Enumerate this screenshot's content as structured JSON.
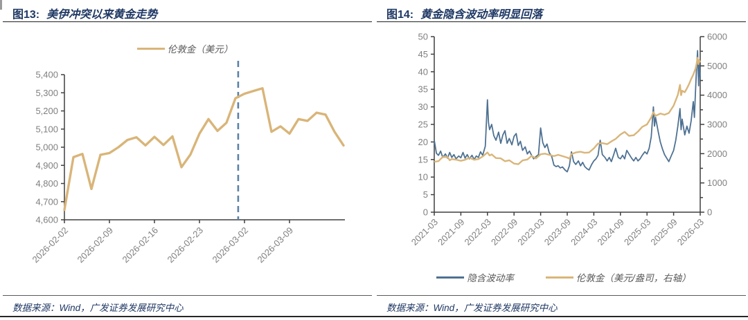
{
  "figures": [
    {
      "prefix": "图13:",
      "title": "美伊冲突以来黄金走势",
      "source": "数据来源：Wind，广发证券发展研究中心"
    },
    {
      "prefix": "图14:",
      "title": "黄金隐含波动率明显回落",
      "source": "数据来源：Wind，广发证券发展研究中心"
    }
  ],
  "colors": {
    "navy_text": "#1f3864",
    "gold_line": "#d9b579",
    "blue_line": "#4e7192",
    "axis_line": "#3f3f3f",
    "tick_label": "#7f7f7f",
    "dashed_event_line": "#5b82a6"
  },
  "chart_data": [
    {
      "type": "line",
      "title": "图13: 美伊冲突以来黄金走势",
      "legend_position": "top-center",
      "grid": false,
      "ylim": [
        4600,
        5400
      ],
      "y_tick_labels": [
        "4,600",
        "4,700",
        "4,800",
        "4,900",
        "5,000",
        "5,100",
        "5,200",
        "5,300",
        "5,400"
      ],
      "x_tick_labels": [
        "2026-02-02",
        "2026-02-09",
        "2026-02-16",
        "2026-02-23",
        "2026-03-02",
        "2026-03-09"
      ],
      "event_line": {
        "date": "2026-02-27",
        "style": "dashed"
      },
      "series": [
        {
          "name": "伦敦金（美元）",
          "color": "#d9b579",
          "dates": [
            "2026-02-02",
            "2026-02-03",
            "2026-02-04",
            "2026-02-05",
            "2026-02-06",
            "2026-02-09",
            "2026-02-10",
            "2026-02-11",
            "2026-02-12",
            "2026-02-13",
            "2026-02-16",
            "2026-02-17",
            "2026-02-18",
            "2026-02-19",
            "2026-02-20",
            "2026-02-23",
            "2026-02-24",
            "2026-02-25",
            "2026-02-26",
            "2026-02-27",
            "2026-03-02",
            "2026-03-03",
            "2026-03-04",
            "2026-03-05",
            "2026-03-06",
            "2026-03-09",
            "2026-03-10",
            "2026-03-11",
            "2026-03-12",
            "2026-03-13",
            "2026-03-16",
            "2026-03-17"
          ],
          "values": [
            4655,
            4945,
            4963,
            4770,
            4958,
            4968,
            5000,
            5040,
            5055,
            5010,
            5057,
            5012,
            5060,
            4890,
            4960,
            5075,
            5155,
            5090,
            5135,
            5270,
            5295,
            5310,
            5325,
            5085,
            5115,
            5075,
            5155,
            5145,
            5190,
            5180,
            5085,
            5010
          ]
        }
      ]
    },
    {
      "type": "line",
      "title": "图14: 黄金隐含波动率明显回落",
      "legend_position": "bottom-center",
      "grid": false,
      "left_ylim": [
        0,
        50
      ],
      "right_ylim": [
        0,
        6000
      ],
      "left_y_tick_labels": [
        "0",
        "5",
        "10",
        "15",
        "20",
        "25",
        "30",
        "35",
        "40",
        "45",
        "50"
      ],
      "right_y_tick_labels": [
        "0",
        "1000",
        "2000",
        "3000",
        "4000",
        "5000",
        "6000"
      ],
      "right_y_minor_tick_step": 500,
      "xlim_decimal_years": [
        2021.17,
        2026.17
      ],
      "x_tick_labels": [
        "2021-03",
        "2021-09",
        "2022-03",
        "2022-09",
        "2023-03",
        "2023-09",
        "2024-03",
        "2024-09",
        "2025-03",
        "2025-09",
        "2026-03"
      ],
      "series": [
        {
          "name": "隐含波动率",
          "axis": "left",
          "color": "#4e7192",
          "points": [
            [
              2021.17,
              20.5
            ],
            [
              2021.21,
              16.8
            ],
            [
              2021.25,
              16.2
            ],
            [
              2021.29,
              17.4
            ],
            [
              2021.33,
              15.6
            ],
            [
              2021.38,
              16.6
            ],
            [
              2021.42,
              15.4
            ],
            [
              2021.46,
              17
            ],
            [
              2021.5,
              15.6
            ],
            [
              2021.54,
              16.4
            ],
            [
              2021.58,
              15.2
            ],
            [
              2021.63,
              16
            ],
            [
              2021.67,
              15.5
            ],
            [
              2021.71,
              17
            ],
            [
              2021.75,
              15.4
            ],
            [
              2021.79,
              16.4
            ],
            [
              2021.83,
              15.2
            ],
            [
              2021.88,
              16.2
            ],
            [
              2021.92,
              15
            ],
            [
              2021.96,
              16
            ],
            [
              2022,
              15.6
            ],
            [
              2022.04,
              17.2
            ],
            [
              2022.08,
              16.2
            ],
            [
              2022.13,
              18.8
            ],
            [
              2022.17,
              32
            ],
            [
              2022.19,
              25.5
            ],
            [
              2022.21,
              23.5
            ],
            [
              2022.25,
              25
            ],
            [
              2022.29,
              21.8
            ],
            [
              2022.33,
              20.5
            ],
            [
              2022.38,
              22.8
            ],
            [
              2022.42,
              19.6
            ],
            [
              2022.46,
              22
            ],
            [
              2022.5,
              23.2
            ],
            [
              2022.54,
              19.6
            ],
            [
              2022.58,
              21
            ],
            [
              2022.63,
              19.2
            ],
            [
              2022.67,
              21.6
            ],
            [
              2022.71,
              22.4
            ],
            [
              2022.75,
              19
            ],
            [
              2022.79,
              20.2
            ],
            [
              2022.83,
              17.6
            ],
            [
              2022.88,
              18.6
            ],
            [
              2022.92,
              16.6
            ],
            [
              2022.96,
              17.4
            ],
            [
              2023,
              16.2
            ],
            [
              2023.04,
              15.2
            ],
            [
              2023.08,
              15.8
            ],
            [
              2023.13,
              16.4
            ],
            [
              2023.17,
              24
            ],
            [
              2023.21,
              19.8
            ],
            [
              2023.25,
              18.4
            ],
            [
              2023.29,
              19.4
            ],
            [
              2023.33,
              17
            ],
            [
              2023.38,
              15.8
            ],
            [
              2023.42,
              13.4
            ],
            [
              2023.46,
              13
            ],
            [
              2023.5,
              13.2
            ],
            [
              2023.54,
              12.6
            ],
            [
              2023.58,
              12.9
            ],
            [
              2023.63,
              12
            ],
            [
              2023.67,
              11.5
            ],
            [
              2023.71,
              13.2
            ],
            [
              2023.75,
              17.2
            ],
            [
              2023.79,
              14.4
            ],
            [
              2023.83,
              13.6
            ],
            [
              2023.88,
              14.6
            ],
            [
              2023.92,
              13.2
            ],
            [
              2023.96,
              14.2
            ],
            [
              2024,
              13
            ],
            [
              2024.04,
              12.4
            ],
            [
              2024.08,
              12
            ],
            [
              2024.13,
              13.6
            ],
            [
              2024.17,
              14.6
            ],
            [
              2024.21,
              15.2
            ],
            [
              2024.25,
              16.2
            ],
            [
              2024.29,
              20.5
            ],
            [
              2024.33,
              16.4
            ],
            [
              2024.38,
              15.6
            ],
            [
              2024.42,
              14.6
            ],
            [
              2024.46,
              15.6
            ],
            [
              2024.5,
              14.4
            ],
            [
              2024.54,
              16.2
            ],
            [
              2024.58,
              18.2
            ],
            [
              2024.63,
              15.6
            ],
            [
              2024.67,
              15.2
            ],
            [
              2024.71,
              16.2
            ],
            [
              2024.75,
              15.2
            ],
            [
              2024.79,
              17.6
            ],
            [
              2024.83,
              16.6
            ],
            [
              2024.88,
              15.4
            ],
            [
              2024.92,
              14.6
            ],
            [
              2024.96,
              15.6
            ],
            [
              2025,
              14.6
            ],
            [
              2025.04,
              15.2
            ],
            [
              2025.08,
              16.2
            ],
            [
              2025.13,
              17.2
            ],
            [
              2025.17,
              16.6
            ],
            [
              2025.21,
              18.2
            ],
            [
              2025.25,
              21.5
            ],
            [
              2025.29,
              30
            ],
            [
              2025.31,
              24.5
            ],
            [
              2025.33,
              27
            ],
            [
              2025.38,
              23
            ],
            [
              2025.42,
              20
            ],
            [
              2025.46,
              18
            ],
            [
              2025.5,
              16.4
            ],
            [
              2025.54,
              15.4
            ],
            [
              2025.58,
              14.4
            ],
            [
              2025.63,
              16.2
            ],
            [
              2025.67,
              17.6
            ],
            [
              2025.71,
              20.5
            ],
            [
              2025.75,
              24.5
            ],
            [
              2025.79,
              29.5
            ],
            [
              2025.81,
              23.5
            ],
            [
              2025.83,
              26.5
            ],
            [
              2025.88,
              22
            ],
            [
              2025.92,
              24.5
            ],
            [
              2025.96,
              22.5
            ],
            [
              2026,
              26
            ],
            [
              2026.04,
              31.5
            ],
            [
              2026.06,
              27
            ],
            [
              2026.08,
              34
            ],
            [
              2026.1,
              40.5
            ],
            [
              2026.12,
              46
            ],
            [
              2026.14,
              36
            ],
            [
              2026.15,
              43
            ],
            [
              2026.17,
              38
            ]
          ]
        },
        {
          "name": "伦敦金（美元/盎司，右轴）",
          "axis": "right",
          "color": "#d9b579",
          "points": [
            [
              2021.17,
              1720
            ],
            [
              2021.25,
              1745
            ],
            [
              2021.33,
              1890
            ],
            [
              2021.42,
              1885
            ],
            [
              2021.46,
              1775
            ],
            [
              2021.5,
              1815
            ],
            [
              2021.58,
              1795
            ],
            [
              2021.67,
              1755
            ],
            [
              2021.75,
              1790
            ],
            [
              2021.83,
              1860
            ],
            [
              2021.92,
              1790
            ],
            [
              2022,
              1815
            ],
            [
              2022.08,
              1905
            ],
            [
              2022.17,
              2040
            ],
            [
              2022.21,
              1940
            ],
            [
              2022.25,
              1975
            ],
            [
              2022.33,
              1850
            ],
            [
              2022.42,
              1840
            ],
            [
              2022.5,
              1740
            ],
            [
              2022.58,
              1775
            ],
            [
              2022.67,
              1660
            ],
            [
              2022.75,
              1640
            ],
            [
              2022.83,
              1770
            ],
            [
              2022.92,
              1800
            ],
            [
              2023,
              1925
            ],
            [
              2023.08,
              1835
            ],
            [
              2023.17,
              1980
            ],
            [
              2023.25,
              2000
            ],
            [
              2023.33,
              1960
            ],
            [
              2023.42,
              1915
            ],
            [
              2023.5,
              1960
            ],
            [
              2023.58,
              1915
            ],
            [
              2023.67,
              1865
            ],
            [
              2023.71,
              1830
            ],
            [
              2023.75,
              1985
            ],
            [
              2023.83,
              2040
            ],
            [
              2023.92,
              2065
            ],
            [
              2024,
              2030
            ],
            [
              2024.08,
              2040
            ],
            [
              2024.17,
              2180
            ],
            [
              2024.25,
              2345
            ],
            [
              2024.33,
              2360
            ],
            [
              2024.42,
              2325
            ],
            [
              2024.5,
              2420
            ],
            [
              2024.58,
              2505
            ],
            [
              2024.67,
              2655
            ],
            [
              2024.75,
              2745
            ],
            [
              2024.83,
              2610
            ],
            [
              2024.92,
              2630
            ],
            [
              2025,
              2755
            ],
            [
              2025.08,
              2915
            ],
            [
              2025.17,
              3000
            ],
            [
              2025.25,
              3240
            ],
            [
              2025.29,
              3420
            ],
            [
              2025.33,
              3290
            ],
            [
              2025.42,
              3370
            ],
            [
              2025.5,
              3330
            ],
            [
              2025.58,
              3390
            ],
            [
              2025.67,
              3640
            ],
            [
              2025.75,
              4010
            ],
            [
              2025.79,
              4350
            ],
            [
              2025.81,
              4000
            ],
            [
              2025.83,
              4150
            ],
            [
              2025.88,
              4100
            ],
            [
              2025.92,
              4230
            ],
            [
              2025.96,
              4380
            ],
            [
              2026,
              4550
            ],
            [
              2026.04,
              4700
            ],
            [
              2026.08,
              4900
            ],
            [
              2026.1,
              5050
            ],
            [
              2026.12,
              5280
            ],
            [
              2026.14,
              5060
            ],
            [
              2026.15,
              5200
            ],
            [
              2026.17,
              5120
            ]
          ]
        }
      ]
    }
  ]
}
